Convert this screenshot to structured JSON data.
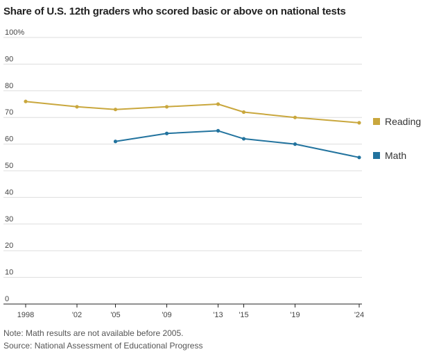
{
  "title": "Share of U.S. 12th graders who scored basic or above on national tests",
  "notes": {
    "note": "Note: Math results are not available before 2005.",
    "source": "Source: National Assessment of Educational Progress"
  },
  "colors": {
    "reading": "#c9a73d",
    "math": "#22739e",
    "grid": "#dddddd",
    "axis": "#222222"
  },
  "chart_data": {
    "type": "line",
    "title": "Share of U.S. 12th graders who scored basic or above on national tests",
    "xlabel": "",
    "ylabel": "",
    "ylim": [
      0,
      100
    ],
    "xlim": [
      1998,
      2024
    ],
    "grid": true,
    "y_ticks": [
      {
        "value": 0,
        "label": "0"
      },
      {
        "value": 10,
        "label": "10"
      },
      {
        "value": 20,
        "label": "20"
      },
      {
        "value": 30,
        "label": "30"
      },
      {
        "value": 40,
        "label": "40"
      },
      {
        "value": 50,
        "label": "50"
      },
      {
        "value": 60,
        "label": "60"
      },
      {
        "value": 70,
        "label": "70"
      },
      {
        "value": 80,
        "label": "80"
      },
      {
        "value": 90,
        "label": "90"
      },
      {
        "value": 100,
        "label": "100%"
      }
    ],
    "x_ticks": [
      {
        "value": 1998,
        "label": "1998"
      },
      {
        "value": 2002,
        "label": "'02"
      },
      {
        "value": 2005,
        "label": "'05"
      },
      {
        "value": 2009,
        "label": "'09"
      },
      {
        "value": 2013,
        "label": "'13"
      },
      {
        "value": 2015,
        "label": "'15"
      },
      {
        "value": 2019,
        "label": "'19"
      },
      {
        "value": 2024,
        "label": "'24"
      }
    ],
    "legend_position": "right",
    "series": [
      {
        "name": "Reading",
        "color": "#c9a73d",
        "points": [
          [
            1998,
            76
          ],
          [
            2002,
            74
          ],
          [
            2005,
            73
          ],
          [
            2009,
            74
          ],
          [
            2013,
            75
          ],
          [
            2015,
            72
          ],
          [
            2019,
            70
          ],
          [
            2024,
            68
          ]
        ]
      },
      {
        "name": "Math",
        "color": "#22739e",
        "points": [
          [
            2005,
            61
          ],
          [
            2009,
            64
          ],
          [
            2013,
            65
          ],
          [
            2015,
            62
          ],
          [
            2019,
            60
          ],
          [
            2024,
            55
          ]
        ]
      }
    ]
  }
}
